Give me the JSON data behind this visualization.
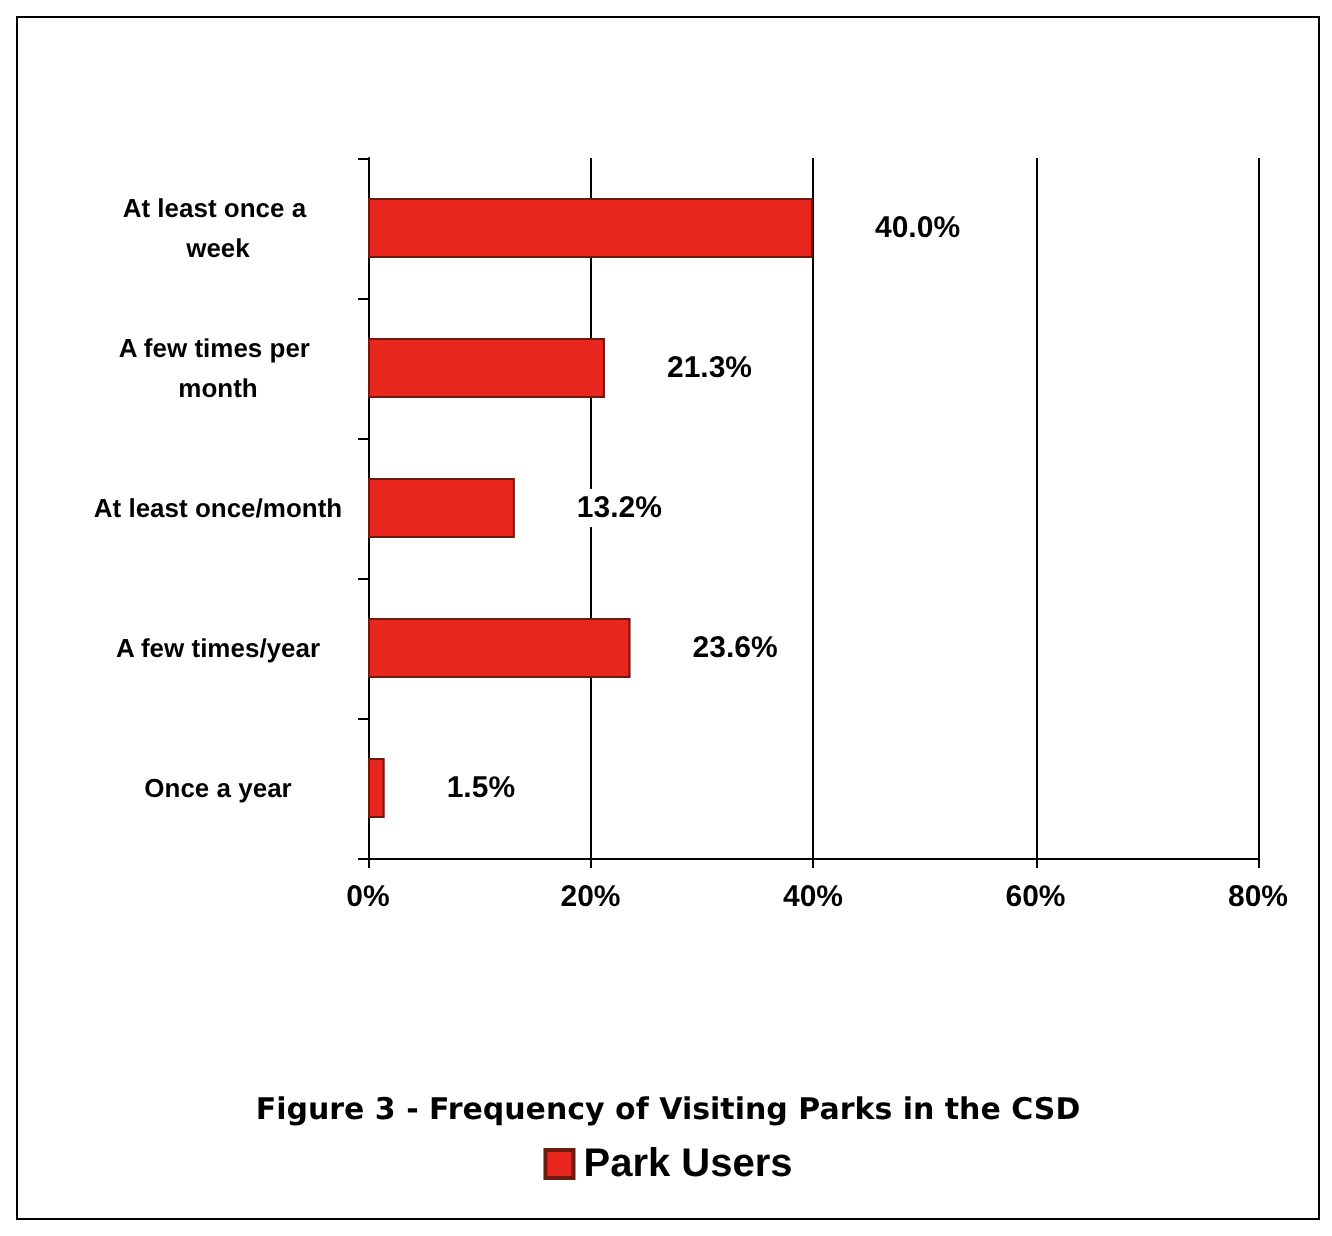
{
  "chart_data": {
    "type": "bar",
    "orientation": "horizontal",
    "title": "Figure 3 - Frequency of Visiting Parks in the CSD",
    "categories": [
      "At least once a week",
      "A few times per month",
      "At least once/month",
      "A few times/year",
      "Once a year"
    ],
    "series": [
      {
        "name": "Park Users",
        "color": "#e8261e",
        "values": [
          40.0,
          21.3,
          13.2,
          23.6,
          1.5
        ],
        "value_labels": [
          "40.0%",
          "21.3%",
          "13.2%",
          "23.6%",
          "1.5%"
        ]
      }
    ],
    "xlim": [
      0,
      80
    ],
    "xticks": [
      {
        "value": 0,
        "label": "0%"
      },
      {
        "value": 20,
        "label": "20%"
      },
      {
        "value": 40,
        "label": "40%"
      },
      {
        "value": 60,
        "label": "60%"
      },
      {
        "value": 80,
        "label": "80%"
      }
    ],
    "grid": "x",
    "legend": "bottom"
  }
}
